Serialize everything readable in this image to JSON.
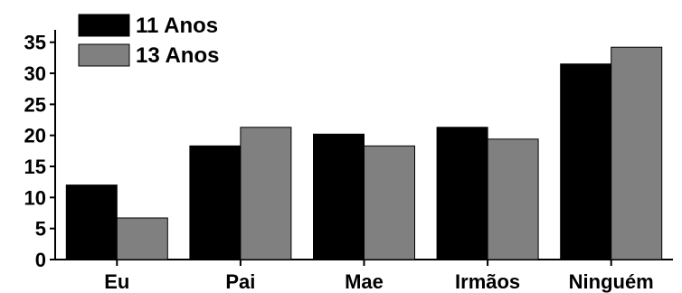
{
  "chart_data": {
    "type": "bar",
    "categories": [
      "Eu",
      "Pai",
      "Mae",
      "Irmãos",
      "Ninguém"
    ],
    "series": [
      {
        "name": "11 Anos",
        "values": [
          12.0,
          18.3,
          20.2,
          21.3,
          31.5
        ],
        "color": "#000000"
      },
      {
        "name": "13 Anos",
        "values": [
          6.7,
          21.3,
          18.3,
          19.4,
          34.2
        ],
        "color": "#808080"
      }
    ],
    "y_ticks": [
      0,
      5,
      10,
      15,
      20,
      25,
      30,
      35
    ],
    "ylim": [
      0,
      37
    ],
    "legend_position": "top-left",
    "grid": false
  }
}
